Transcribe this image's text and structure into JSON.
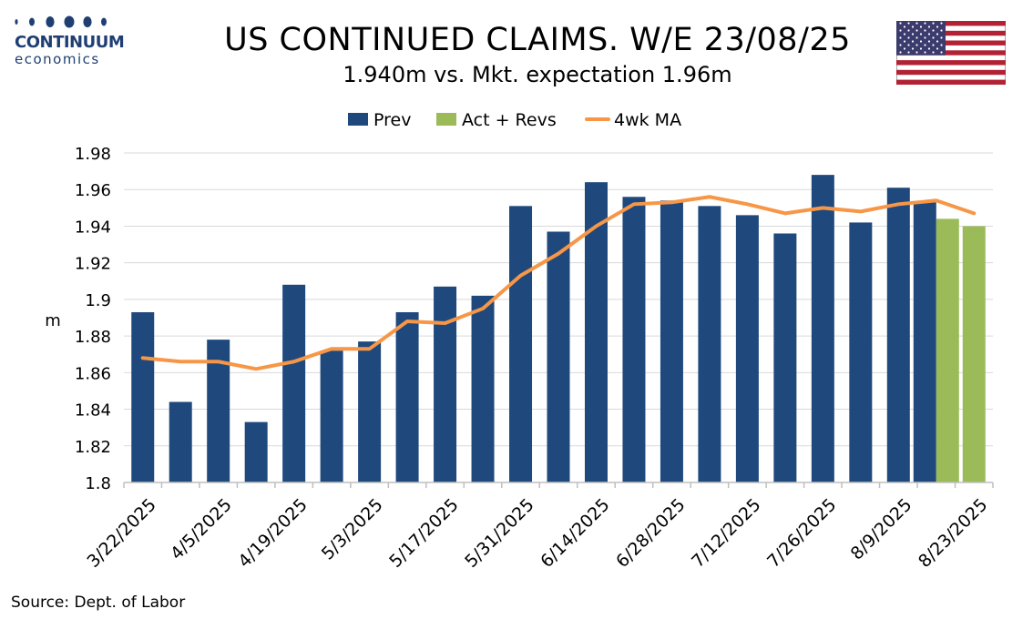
{
  "logo": {
    "name": "CONTINUUM",
    "sub": "economics"
  },
  "title": "US CONTINUED CLAIMS. W/E 23/08/25",
  "subtitle": "1.940m vs. Mkt. expectation 1.96m",
  "source": "Source: Dept. of Labor",
  "flag_icon": "us-flag-icon",
  "colors": {
    "prev": "#1f497d",
    "act": "#9bbb59",
    "ma": "#f79646",
    "grid": "#d9d9d9",
    "axis": "#bfbfbf"
  },
  "chart_data": {
    "type": "bar",
    "title": "US CONTINUED CLAIMS. W/E 23/08/25",
    "subtitle": "1.940m vs. Mkt. expectation 1.96m",
    "ylabel": "m",
    "xlabel": "",
    "ylim": [
      1.8,
      1.98
    ],
    "yticks": [
      "1.8",
      "1.82",
      "1.84",
      "1.86",
      "1.88",
      "1.9",
      "1.92",
      "1.94",
      "1.96",
      "1.98"
    ],
    "ytick_values": [
      1.8,
      1.82,
      1.84,
      1.86,
      1.88,
      1.9,
      1.92,
      1.94,
      1.96,
      1.98
    ],
    "grid": true,
    "legend_position": "top-center",
    "categories": [
      "3/22/2025",
      "3/29/2025",
      "4/5/2025",
      "4/12/2025",
      "4/19/2025",
      "4/26/2025",
      "5/3/2025",
      "5/10/2025",
      "5/17/2025",
      "5/24/2025",
      "5/31/2025",
      "6/7/2025",
      "6/14/2025",
      "6/21/2025",
      "6/28/2025",
      "7/5/2025",
      "7/12/2025",
      "7/19/2025",
      "7/26/2025",
      "8/2/2025",
      "8/9/2025",
      "8/16/2025",
      "8/23/2025"
    ],
    "x_tick_labels": [
      "3/22/2025",
      "4/5/2025",
      "4/19/2025",
      "5/3/2025",
      "5/17/2025",
      "5/31/2025",
      "6/14/2025",
      "6/28/2025",
      "7/12/2025",
      "7/26/2025",
      "8/9/2025",
      "8/23/2025"
    ],
    "series": [
      {
        "name": "Prev",
        "type": "bar",
        "values": [
          1.893,
          1.844,
          1.878,
          1.833,
          1.908,
          1.872,
          1.877,
          1.893,
          1.907,
          1.902,
          1.951,
          1.937,
          1.964,
          1.956,
          1.954,
          1.951,
          1.946,
          1.936,
          1.968,
          1.942,
          1.961,
          1.953,
          null
        ]
      },
      {
        "name": "Act + Revs",
        "type": "bar",
        "values": [
          null,
          null,
          null,
          null,
          null,
          null,
          null,
          null,
          null,
          null,
          null,
          null,
          null,
          null,
          null,
          null,
          null,
          null,
          null,
          null,
          null,
          1.944,
          1.94
        ]
      },
      {
        "name": "4wk MA",
        "type": "line",
        "values": [
          1.868,
          1.866,
          1.866,
          1.862,
          1.866,
          1.873,
          1.873,
          1.888,
          1.887,
          1.895,
          1.913,
          1.925,
          1.94,
          1.952,
          1.953,
          1.956,
          1.952,
          1.947,
          1.95,
          1.948,
          1.952,
          1.954,
          1.947
        ]
      }
    ]
  }
}
